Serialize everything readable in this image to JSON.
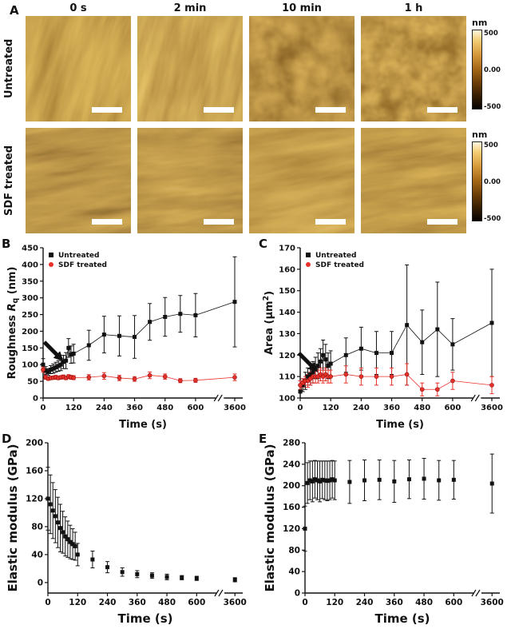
{
  "panels": {
    "a": "A",
    "b": "B",
    "c": "C",
    "d": "D",
    "e": "E"
  },
  "panel_a": {
    "column_headers": [
      "0 s",
      "2 min",
      "10 min",
      "1 h"
    ],
    "row_labels": [
      "Untreated",
      "SDF treated"
    ],
    "colorbar": {
      "unit": "nm",
      "max": "500",
      "mid": "0.00",
      "min": "-500"
    }
  },
  "chart_data": [
    {
      "id": "B",
      "type": "scatter",
      "xlabel": "Time (s)",
      "ylabel": "Roughness Rq (nm)",
      "ylabel_rich": [
        {
          "t": "Roughness "
        },
        {
          "t": "R",
          "i": true
        },
        {
          "t": "q",
          "sub": true
        },
        {
          "t": " (nm)"
        }
      ],
      "ylim": [
        0,
        450
      ],
      "yticks": [
        0,
        50,
        100,
        150,
        200,
        250,
        300,
        350,
        400,
        450
      ],
      "xticks": [
        0,
        120,
        240,
        360,
        480,
        600,
        3600
      ],
      "x_axis_break_after": 600,
      "legend": true,
      "legend_position": "top-left",
      "arrow": {
        "x": 80,
        "y": 110
      },
      "x": [
        0,
        10,
        20,
        30,
        40,
        50,
        60,
        70,
        80,
        90,
        100,
        110,
        120,
        180,
        240,
        300,
        360,
        420,
        480,
        540,
        600,
        3600
      ],
      "series": [
        {
          "name": "Untreated",
          "color": "#111111",
          "marker": "square",
          "connect": true,
          "y": [
            100,
            82,
            78,
            85,
            88,
            92,
            96,
            100,
            108,
            112,
            150,
            130,
            133,
            158,
            190,
            186,
            183,
            228,
            243,
            252,
            248,
            288
          ],
          "err": [
            18,
            12,
            10,
            12,
            14,
            15,
            16,
            18,
            20,
            24,
            28,
            26,
            28,
            45,
            55,
            60,
            64,
            55,
            58,
            55,
            65,
            135
          ]
        },
        {
          "name": "SDF treated",
          "color": "#e8312a",
          "marker": "circle",
          "connect": true,
          "y": [
            85,
            62,
            58,
            60,
            61,
            62,
            60,
            62,
            63,
            60,
            64,
            62,
            61,
            62,
            66,
            60,
            57,
            68,
            64,
            52,
            53,
            62
          ],
          "err": [
            8,
            6,
            5,
            5,
            5,
            6,
            5,
            5,
            6,
            5,
            6,
            6,
            6,
            8,
            10,
            8,
            7,
            10,
            8,
            6,
            6,
            10
          ]
        }
      ]
    },
    {
      "id": "C",
      "type": "scatter",
      "xlabel": "Time (s)",
      "ylabel": "Area (μm2)",
      "ylabel_rich": [
        {
          "t": "Area (μm"
        },
        {
          "t": "2",
          "sup": true
        },
        {
          "t": ")"
        }
      ],
      "ylim": [
        100,
        170
      ],
      "yticks": [
        100,
        110,
        120,
        130,
        140,
        150,
        160,
        170
      ],
      "xticks": [
        0,
        120,
        240,
        360,
        480,
        600,
        3600
      ],
      "x_axis_break_after": 600,
      "legend": true,
      "legend_position": "top-left",
      "arrow": {
        "x": 70,
        "y": 112
      },
      "x": [
        0,
        10,
        20,
        30,
        40,
        50,
        60,
        70,
        80,
        90,
        100,
        110,
        120,
        180,
        240,
        300,
        360,
        420,
        480,
        540,
        600,
        3600
      ],
      "series": [
        {
          "name": "Untreated",
          "color": "#111111",
          "marker": "square",
          "connect": true,
          "y": [
            103,
            106,
            108,
            110,
            111,
            112,
            114,
            115,
            117,
            120,
            118,
            115,
            116,
            120,
            123,
            121,
            121,
            134,
            126,
            132,
            125,
            135
          ],
          "err": [
            3,
            3,
            4,
            4,
            5,
            5,
            5,
            6,
            6,
            7,
            7,
            6,
            6,
            8,
            10,
            10,
            10,
            28,
            15,
            22,
            12,
            25
          ]
        },
        {
          "name": "SDF treated",
          "color": "#e8312a",
          "marker": "circle",
          "connect": true,
          "y": [
            106,
            107,
            108,
            108,
            109,
            110,
            110,
            110,
            111,
            110,
            111,
            110,
            110,
            111,
            110,
            110,
            110,
            111,
            104,
            104,
            108,
            106
          ],
          "err": [
            2,
            2,
            2,
            3,
            3,
            3,
            3,
            3,
            3,
            3,
            3,
            3,
            3,
            4,
            4,
            4,
            4,
            5,
            3,
            3,
            4,
            4
          ]
        }
      ]
    },
    {
      "id": "D",
      "type": "scatter",
      "xlabel": "Time (s)",
      "ylabel": "Elastic modulus (GPa)",
      "ylim": [
        -15,
        200
      ],
      "yticks": [
        0,
        40,
        80,
        120,
        160,
        200
      ],
      "xticks": [
        0,
        120,
        240,
        360,
        480,
        600,
        3600
      ],
      "x_axis_break_after": 600,
      "legend": false,
      "x": [
        0,
        10,
        20,
        30,
        40,
        50,
        60,
        70,
        80,
        90,
        100,
        110,
        120,
        180,
        240,
        300,
        360,
        420,
        480,
        540,
        600,
        3600
      ],
      "series": [
        {
          "color": "#111111",
          "marker": "square",
          "connect": false,
          "y": [
            120,
            112,
            103,
            95,
            86,
            78,
            72,
            66,
            62,
            58,
            55,
            52,
            40,
            33,
            22,
            15,
            12,
            10,
            8,
            7,
            6,
            4
          ],
          "err": [
            45,
            42,
            40,
            38,
            36,
            34,
            30,
            28,
            26,
            24,
            22,
            20,
            16,
            12,
            8,
            6,
            5,
            4,
            4,
            3,
            3,
            3
          ]
        }
      ]
    },
    {
      "id": "E",
      "type": "scatter",
      "xlabel": "Time (s)",
      "ylabel": "Elastic modulus (GPa)",
      "ylim": [
        0,
        280
      ],
      "yticks": [
        0,
        40,
        80,
        120,
        160,
        200,
        240,
        280
      ],
      "xticks": [
        0,
        120,
        240,
        360,
        480,
        600,
        3600
      ],
      "x_axis_break_after": 600,
      "legend": false,
      "x": [
        0,
        10,
        20,
        30,
        40,
        50,
        60,
        70,
        80,
        90,
        100,
        110,
        120,
        180,
        240,
        300,
        360,
        420,
        480,
        540,
        600,
        3600
      ],
      "series": [
        {
          "color": "#111111",
          "marker": "square",
          "connect": false,
          "y": [
            120,
            205,
            210,
            208,
            212,
            210,
            208,
            211,
            210,
            209,
            210,
            212,
            210,
            207,
            210,
            211,
            208,
            212,
            213,
            210,
            211,
            204
          ],
          "err": [
            42,
            38,
            36,
            38,
            35,
            36,
            38,
            35,
            36,
            37,
            36,
            35,
            36,
            40,
            38,
            37,
            39,
            36,
            38,
            37,
            36,
            55
          ]
        }
      ]
    }
  ]
}
